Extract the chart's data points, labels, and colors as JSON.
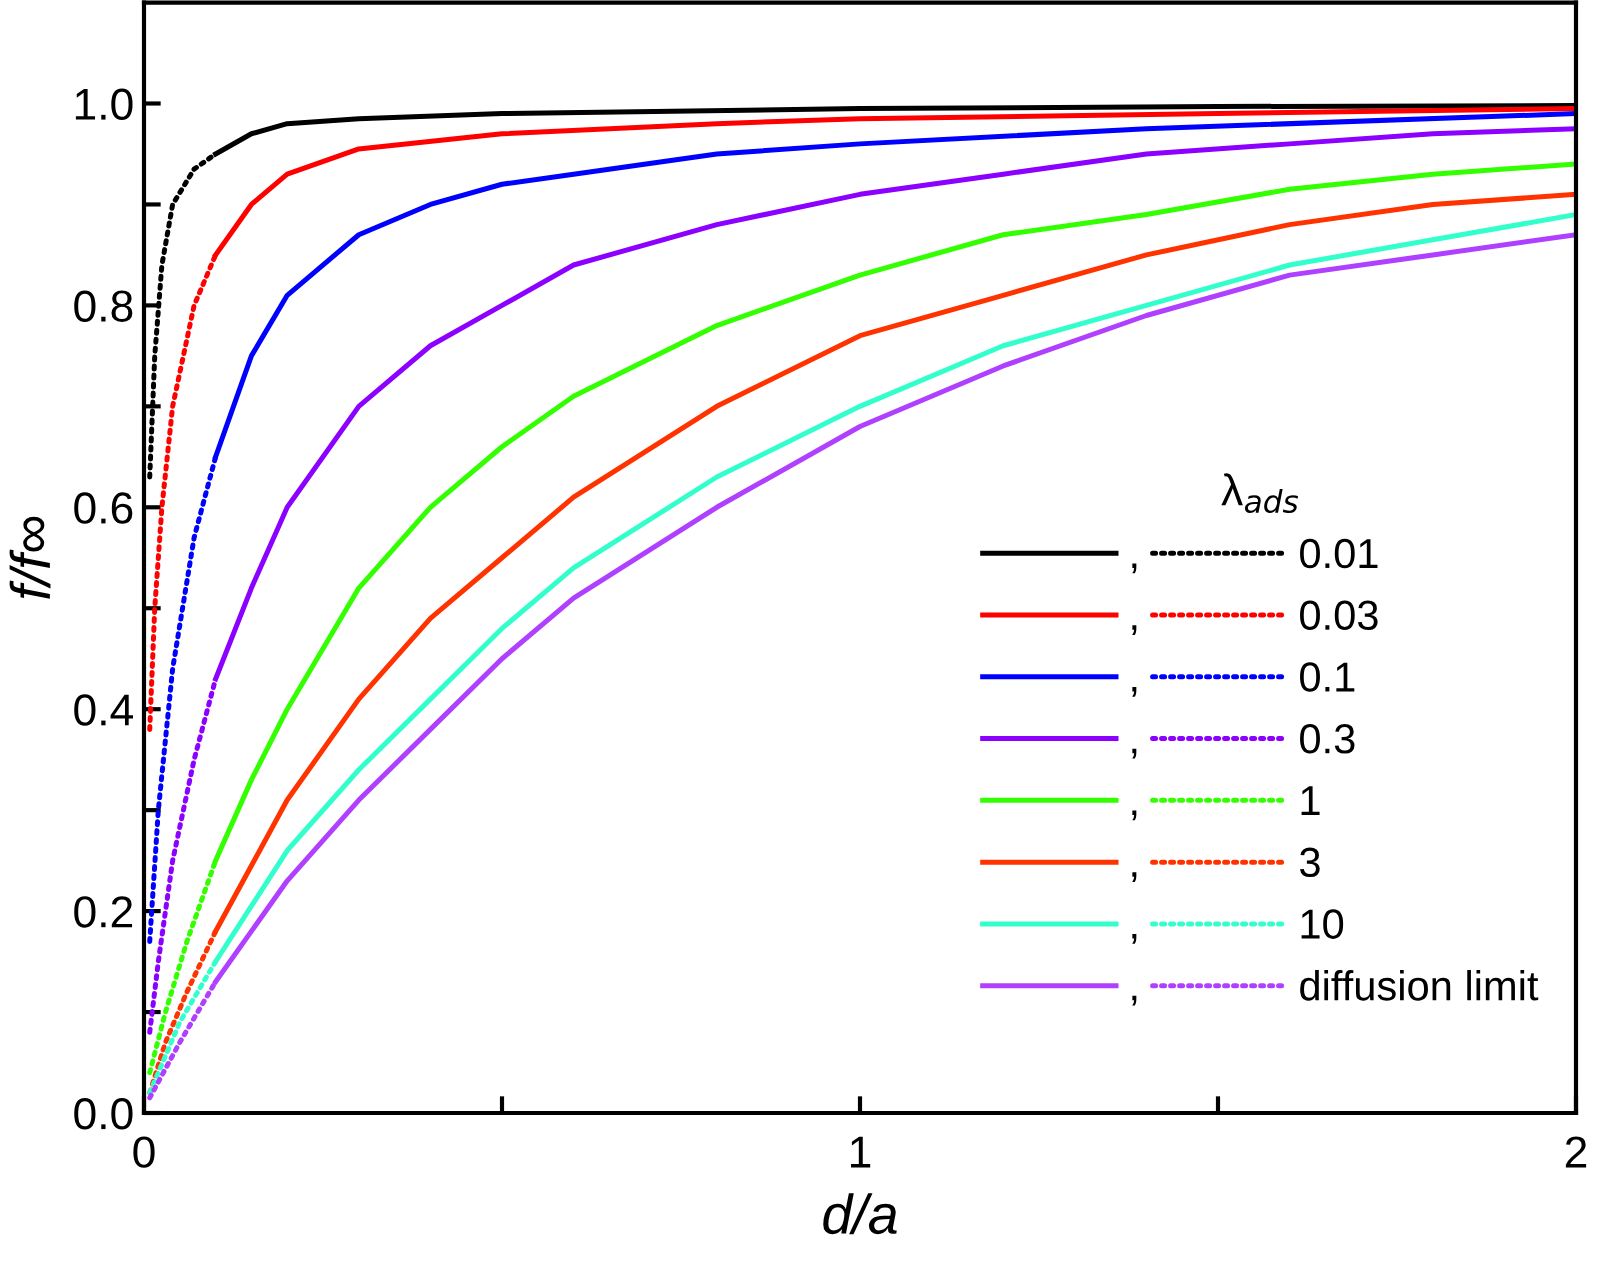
{
  "chart_data": {
    "type": "line",
    "xlabel": "d/a",
    "ylabel": "f/f∞",
    "legend_title": "λ$_{ads}$",
    "xlim": [
      0,
      2
    ],
    "ylim": [
      0,
      1.1
    ],
    "xticks": [
      0,
      {
        "value": 0.5,
        "label": null
      },
      1,
      {
        "value": 1.5,
        "label": null
      },
      2
    ],
    "yticks": [
      {
        "value": 0,
        "label": "0.0"
      },
      {
        "value": 0.1,
        "label": null
      },
      0.2,
      {
        "value": 0.3,
        "label": null
      },
      0.4,
      {
        "value": 0.5,
        "label": null
      },
      0.6,
      {
        "value": 0.7,
        "label": null
      },
      0.8,
      {
        "value": 0.9,
        "label": null
      },
      {
        "value": 1,
        "label": "1.0"
      }
    ],
    "grid": false,
    "legend": "lower right",
    "marker": "none",
    "series": [
      {
        "name": ",",
        "color": "#000000",
        "line_style": "solid",
        "x": [
          0.1,
          0.15,
          0.2,
          0.3,
          0.5,
          1.0,
          1.5,
          2.0
        ],
        "values": [
          0.95,
          0.97,
          0.98,
          0.985,
          0.99,
          0.995,
          0.997,
          0.998
        ]
      },
      {
        "name": ",",
        "color": "#ff0000",
        "line_style": "solid",
        "x": [
          0.1,
          0.15,
          0.2,
          0.3,
          0.5,
          0.8,
          1.0,
          1.5,
          2.0
        ],
        "values": [
          0.85,
          0.9,
          0.93,
          0.955,
          0.97,
          0.98,
          0.985,
          0.99,
          0.995
        ]
      },
      {
        "name": ",",
        "color": "#0000ff",
        "line_style": "solid",
        "x": [
          0.1,
          0.15,
          0.2,
          0.3,
          0.4,
          0.5,
          0.6,
          0.8,
          1.0,
          1.4,
          2.0
        ],
        "values": [
          0.65,
          0.75,
          0.81,
          0.87,
          0.9,
          0.92,
          0.93,
          0.95,
          0.96,
          0.975,
          0.99
        ]
      },
      {
        "name": ",",
        "color": "#8b00ff",
        "line_style": "solid",
        "x": [
          0.1,
          0.15,
          0.2,
          0.3,
          0.4,
          0.5,
          0.6,
          0.8,
          1.0,
          1.2,
          1.4,
          1.6,
          1.8,
          2.0
        ],
        "values": [
          0.43,
          0.52,
          0.6,
          0.7,
          0.76,
          0.8,
          0.84,
          0.88,
          0.91,
          0.93,
          0.95,
          0.96,
          0.97,
          0.975
        ]
      },
      {
        "name": ",",
        "color": "#33ff00",
        "line_style": "solid",
        "x": [
          0.1,
          0.15,
          0.2,
          0.3,
          0.4,
          0.5,
          0.6,
          0.8,
          1.0,
          1.2,
          1.4,
          1.6,
          1.8,
          2.0
        ],
        "values": [
          0.25,
          0.33,
          0.4,
          0.52,
          0.6,
          0.66,
          0.71,
          0.78,
          0.83,
          0.87,
          0.89,
          0.915,
          0.93,
          0.94
        ]
      },
      {
        "name": ",",
        "color": "#ff3300",
        "line_style": "solid",
        "x": [
          0.1,
          0.2,
          0.3,
          0.4,
          0.5,
          0.6,
          0.8,
          1.0,
          1.2,
          1.4,
          1.6,
          1.8,
          2.0
        ],
        "values": [
          0.18,
          0.31,
          0.41,
          0.49,
          0.55,
          0.61,
          0.7,
          0.77,
          0.81,
          0.85,
          0.88,
          0.9,
          0.91
        ]
      },
      {
        "name": ",",
        "color": "#33ffcc",
        "line_style": "solid",
        "x": [
          0.1,
          0.2,
          0.3,
          0.4,
          0.5,
          0.6,
          0.8,
          1.0,
          1.2,
          1.4,
          1.6,
          1.8,
          2.0
        ],
        "values": [
          0.15,
          0.26,
          0.34,
          0.41,
          0.48,
          0.54,
          0.63,
          0.7,
          0.76,
          0.8,
          0.84,
          0.865,
          0.89
        ]
      },
      {
        "name": ",",
        "color": "#b040ff",
        "line_style": "solid",
        "x": [
          0.1,
          0.2,
          0.3,
          0.4,
          0.5,
          0.6,
          0.8,
          1.0,
          1.2,
          1.4,
          1.6,
          1.8,
          2.0
        ],
        "values": [
          0.13,
          0.23,
          0.31,
          0.38,
          0.45,
          0.51,
          0.6,
          0.68,
          0.74,
          0.79,
          0.83,
          0.85,
          0.87
        ]
      },
      {
        "name": "0.01",
        "color": "#000000",
        "line_style": "dotted",
        "x": [
          0.008,
          0.015,
          0.025,
          0.04,
          0.07,
          0.1
        ],
        "values": [
          0.63,
          0.75,
          0.84,
          0.9,
          0.935,
          0.95
        ]
      },
      {
        "name": "0.03",
        "color": "#ff0000",
        "line_style": "dotted",
        "x": [
          0.008,
          0.015,
          0.025,
          0.04,
          0.07,
          0.1
        ],
        "values": [
          0.38,
          0.5,
          0.6,
          0.7,
          0.8,
          0.85
        ]
      },
      {
        "name": "0.1",
        "color": "#0000ff",
        "line_style": "dotted",
        "x": [
          0.008,
          0.02,
          0.04,
          0.07,
          0.1
        ],
        "values": [
          0.17,
          0.3,
          0.44,
          0.57,
          0.65
        ]
      },
      {
        "name": "0.3",
        "color": "#8b00ff",
        "line_style": "dotted",
        "x": [
          0.008,
          0.02,
          0.04,
          0.07,
          0.1
        ],
        "values": [
          0.08,
          0.15,
          0.25,
          0.35,
          0.43
        ]
      },
      {
        "name": "1",
        "color": "#33ff00",
        "line_style": "dotted",
        "x": [
          0.008,
          0.03,
          0.06,
          0.1
        ],
        "values": [
          0.04,
          0.1,
          0.17,
          0.25
        ]
      },
      {
        "name": "3",
        "color": "#ff3300",
        "line_style": "dotted",
        "x": [
          0.008,
          0.03,
          0.06,
          0.1
        ],
        "values": [
          0.02,
          0.07,
          0.12,
          0.18
        ]
      },
      {
        "name": "10",
        "color": "#33ffcc",
        "line_style": "dotted",
        "x": [
          0.008,
          0.05,
          0.1
        ],
        "values": [
          0.02,
          0.09,
          0.15
        ]
      },
      {
        "name": "diffusion limit",
        "color": "#b040ff",
        "line_style": "dotted",
        "x": [
          0.008,
          0.05,
          0.1
        ],
        "values": [
          0.015,
          0.07,
          0.13
        ]
      }
    ]
  }
}
